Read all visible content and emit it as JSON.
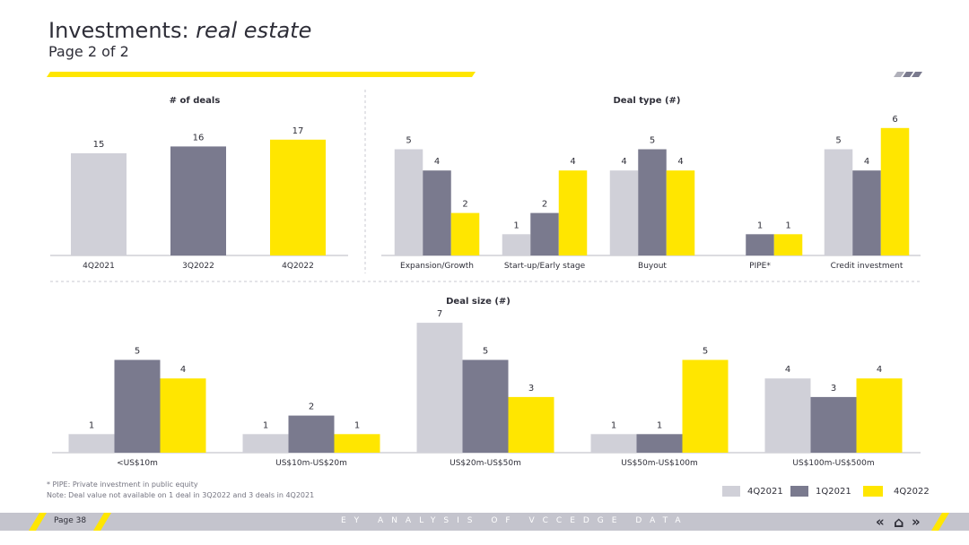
{
  "header": {
    "title_main": "Investments: ",
    "title_italic": "real estate",
    "subtitle": "Page 2 of 2"
  },
  "colors": {
    "4Q2021": "#d0d0d8",
    "1Q2021": "#7a7a8e",
    "3Q2022": "#7a7a8e",
    "4Q2022": "#ffe600",
    "accent": "#ffe600",
    "text": "#2e2e38"
  },
  "chart_data": [
    {
      "type": "bar",
      "title": "# of deals",
      "categories": [
        "4Q2021",
        "3Q2022",
        "4Q2022"
      ],
      "values": [
        15,
        16,
        17
      ],
      "colors": [
        "#d0d0d8",
        "#7a7a8e",
        "#ffe600"
      ],
      "ylim": [
        0,
        20
      ]
    },
    {
      "type": "bar",
      "title": "Deal type (#)",
      "categories": [
        "Expansion/Growth",
        "Start-up/Early stage",
        "Buyout",
        "PIPE*",
        "Credit investment"
      ],
      "series": [
        {
          "name": "4Q2021",
          "values": [
            5,
            1,
            4,
            0,
            5
          ]
        },
        {
          "name": "1Q2021",
          "values": [
            4,
            2,
            5,
            1,
            4
          ]
        },
        {
          "name": "4Q2022",
          "values": [
            2,
            4,
            4,
            1,
            6
          ]
        }
      ],
      "ylim": [
        0,
        6.5
      ]
    },
    {
      "type": "bar",
      "title": "Deal size (#)",
      "categories": [
        "<US$10m",
        "US$10m-US$20m",
        "US$20m-US$50m",
        "US$50m-US$100m",
        "US$100m-US$500m"
      ],
      "series": [
        {
          "name": "4Q2021",
          "values": [
            1,
            1,
            7,
            1,
            4
          ]
        },
        {
          "name": "1Q2021",
          "values": [
            5,
            2,
            5,
            1,
            3
          ]
        },
        {
          "name": "4Q2022",
          "values": [
            4,
            1,
            3,
            5,
            4
          ]
        }
      ],
      "ylim": [
        0,
        7
      ]
    }
  ],
  "legend": [
    {
      "label": "4Q2021",
      "color": "#d0d0d8"
    },
    {
      "label": "1Q2021",
      "color": "#7a7a8e"
    },
    {
      "label": "4Q2022",
      "color": "#ffe600"
    }
  ],
  "notes": {
    "pipe": "* PIPE: Private investment in public equity",
    "deal_value": "Note: Deal value not available on 1 deal in 3Q2022 and 3 deals in 4Q2021"
  },
  "footer": {
    "page": "Page 38",
    "text": "EY ANALYSIS OF VCCEDGE DATA",
    "prev": "«",
    "home": "⌂",
    "next": "»"
  }
}
